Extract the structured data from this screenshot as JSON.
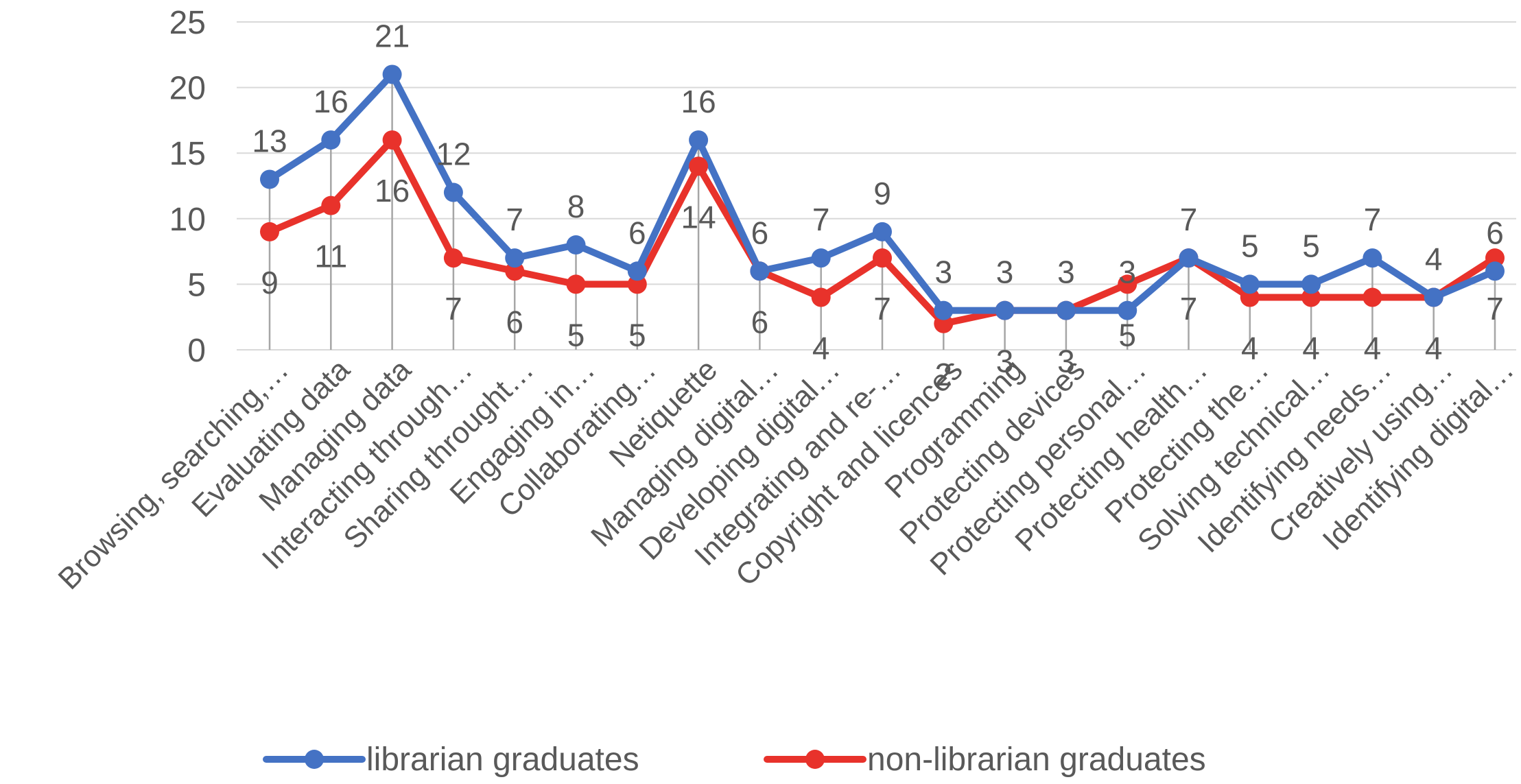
{
  "chart_data": {
    "type": "line",
    "title": "",
    "xlabel": "",
    "ylabel": "",
    "ylim": [
      0,
      25
    ],
    "yticks": [
      0,
      5,
      10,
      15,
      20,
      25
    ],
    "grid": true,
    "legend_position": "bottom",
    "categories": [
      "Browsing, searching,…",
      "Evaluating data",
      "Managing data",
      "Interacting through…",
      "Sharing throught…",
      "Engaging in…",
      "Collaborating…",
      "Netiquette",
      "Managing digital…",
      "Developing digital…",
      "Integrating and re-…",
      "Copyright and licences",
      "Programming",
      "Protecting devices",
      "Protecting personal…",
      "Protecting health…",
      "Protecting the…",
      "Solving technical…",
      "Identifying needs…",
      "Creatively using…",
      "Identifying digital…"
    ],
    "series": [
      {
        "name": "librarian graduates",
        "color": "#4472C4",
        "values": [
          13,
          16,
          21,
          12,
          7,
          8,
          6,
          16,
          6,
          7,
          9,
          3,
          3,
          3,
          3,
          7,
          5,
          5,
          7,
          4,
          6
        ]
      },
      {
        "name": "non-librarian graduates",
        "color": "#E8322B",
        "values": [
          9,
          11,
          16,
          7,
          6,
          5,
          5,
          14,
          6,
          4,
          7,
          2,
          3,
          3,
          5,
          7,
          4,
          4,
          4,
          4,
          7
        ]
      }
    ]
  }
}
